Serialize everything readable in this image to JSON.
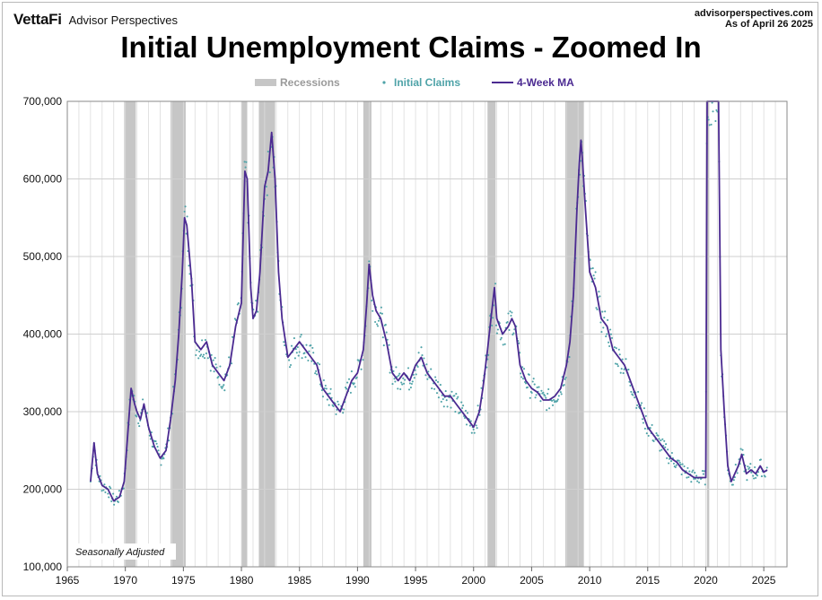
{
  "header": {
    "brand_logo": "VettaFi",
    "brand_name": "Advisor Perspectives",
    "source_line1": "advisorperspectives.com",
    "source_line2": "As of April 26 2025"
  },
  "chart_data": {
    "type": "line",
    "title": "Initial Unemployment Claims - Zoomed In",
    "annotation": "Seasonally Adjusted",
    "xlim": [
      1965,
      2027
    ],
    "ylim": [
      100000,
      700000
    ],
    "x_ticks": [
      1965,
      1970,
      1975,
      1980,
      1985,
      1990,
      1995,
      2000,
      2005,
      2010,
      2015,
      2020,
      2025
    ],
    "y_ticks": [
      100000,
      200000,
      300000,
      400000,
      500000,
      600000,
      700000
    ],
    "y_tick_labels": [
      "100,000",
      "200,000",
      "300,000",
      "400,000",
      "500,000",
      "600,000",
      "700,000"
    ],
    "grid": true,
    "legend": {
      "placement": "top-center",
      "items": [
        {
          "label": "Recessions",
          "kind": "band",
          "color": "#c6c6c6"
        },
        {
          "label": "Initial Claims",
          "kind": "dots",
          "color": "#4fa3a8"
        },
        {
          "label": "4-Week MA",
          "kind": "line",
          "color": "#4b2a91"
        }
      ]
    },
    "recessions": [
      [
        1969.9,
        1970.9
      ],
      [
        1973.9,
        1975.2
      ],
      [
        1980.0,
        1980.5
      ],
      [
        1981.5,
        1982.9
      ],
      [
        1990.5,
        1991.2
      ],
      [
        2001.2,
        2001.9
      ],
      [
        2007.9,
        2009.5
      ],
      [
        2020.1,
        2020.3
      ]
    ],
    "series": [
      {
        "name": "4-Week MA",
        "color": "#4b2a91",
        "x": [
          1967.0,
          1967.3,
          1967.6,
          1968.0,
          1968.5,
          1969.0,
          1969.5,
          1969.9,
          1970.2,
          1970.5,
          1970.8,
          1971.0,
          1971.3,
          1971.6,
          1972.0,
          1972.5,
          1973.0,
          1973.5,
          1973.9,
          1974.3,
          1974.6,
          1974.9,
          1975.1,
          1975.3,
          1975.7,
          1976.0,
          1976.5,
          1977.0,
          1977.5,
          1978.0,
          1978.5,
          1979.0,
          1979.5,
          1980.0,
          1980.3,
          1980.5,
          1980.8,
          1981.0,
          1981.3,
          1981.6,
          1982.0,
          1982.3,
          1982.6,
          1982.9,
          1983.2,
          1983.5,
          1984.0,
          1984.5,
          1985.0,
          1985.5,
          1986.0,
          1986.5,
          1987.0,
          1987.5,
          1988.0,
          1988.5,
          1989.0,
          1989.5,
          1990.0,
          1990.5,
          1990.8,
          1991.0,
          1991.3,
          1991.6,
          1992.0,
          1992.5,
          1993.0,
          1993.5,
          1994.0,
          1994.5,
          1995.0,
          1995.5,
          1996.0,
          1996.5,
          1997.0,
          1997.5,
          1998.0,
          1998.5,
          1999.0,
          1999.5,
          2000.0,
          2000.5,
          2000.8,
          2001.2,
          2001.5,
          2001.8,
          2002.0,
          2002.5,
          2003.0,
          2003.3,
          2003.6,
          2004.0,
          2004.5,
          2005.0,
          2005.5,
          2006.0,
          2006.5,
          2007.0,
          2007.5,
          2008.0,
          2008.3,
          2008.6,
          2008.9,
          2009.1,
          2009.25,
          2009.4,
          2009.6,
          2010.0,
          2010.5,
          2011.0,
          2011.5,
          2012.0,
          2012.5,
          2013.0,
          2013.5,
          2014.0,
          2014.5,
          2015.0,
          2015.5,
          2016.0,
          2016.5,
          2017.0,
          2017.5,
          2018.0,
          2018.5,
          2019.0,
          2019.5,
          2020.0,
          2020.12,
          2020.14,
          2021.1,
          2021.3,
          2021.6,
          2021.9,
          2022.2,
          2022.5,
          2022.8,
          2023.1,
          2023.5,
          2023.9,
          2024.3,
          2024.7,
          2025.0,
          2025.3
        ],
        "values": [
          210000,
          260000,
          220000,
          205000,
          200000,
          185000,
          190000,
          210000,
          270000,
          330000,
          310000,
          300000,
          290000,
          310000,
          280000,
          255000,
          240000,
          250000,
          290000,
          340000,
          400000,
          480000,
          550000,
          540000,
          470000,
          390000,
          380000,
          390000,
          360000,
          350000,
          340000,
          360000,
          410000,
          440000,
          610000,
          600000,
          460000,
          420000,
          430000,
          480000,
          590000,
          610000,
          660000,
          600000,
          480000,
          420000,
          370000,
          380000,
          390000,
          380000,
          370000,
          360000,
          330000,
          320000,
          310000,
          300000,
          320000,
          340000,
          350000,
          380000,
          440000,
          490000,
          450000,
          430000,
          420000,
          390000,
          350000,
          340000,
          350000,
          340000,
          360000,
          370000,
          350000,
          340000,
          330000,
          320000,
          320000,
          310000,
          300000,
          290000,
          280000,
          300000,
          330000,
          380000,
          420000,
          460000,
          420000,
          400000,
          410000,
          420000,
          410000,
          360000,
          340000,
          330000,
          325000,
          315000,
          315000,
          320000,
          330000,
          360000,
          390000,
          450000,
          560000,
          620000,
          650000,
          620000,
          570000,
          480000,
          460000,
          420000,
          410000,
          380000,
          370000,
          360000,
          340000,
          320000,
          300000,
          280000,
          270000,
          260000,
          250000,
          240000,
          235000,
          225000,
          220000,
          215000,
          215000,
          215000,
          700000,
          700000,
          700000,
          380000,
          300000,
          230000,
          210000,
          220000,
          230000,
          245000,
          220000,
          225000,
          220000,
          230000,
          222000,
          225000
        ]
      }
    ]
  }
}
